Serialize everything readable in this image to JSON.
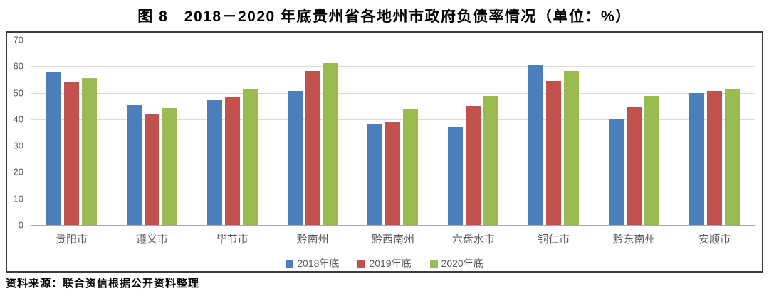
{
  "title": "图 8　2018－2020 年底贵州省各地州市政府负债率情况（单位：%）",
  "source_note": "资料来源：联合资信根据公开资料整理",
  "colors": {
    "series_blue": "#4A7EBC",
    "series_red": "#C2504D",
    "series_green": "#9ABA52",
    "gridline": "#D9D9D9",
    "axis_line": "#A8A8A8",
    "tick_text": "#595959",
    "frame_border": "#3B3B3B"
  },
  "chart_data": {
    "type": "bar",
    "title": "图 8　2018－2020 年底贵州省各地州市政府负债率情况（单位：%）",
    "xlabel": "",
    "ylabel": "",
    "ylim": [
      0,
      70
    ],
    "yticks": [
      0,
      10,
      20,
      30,
      40,
      50,
      60,
      70
    ],
    "grid": true,
    "legend_position": "bottom",
    "categories": [
      "贵阳市",
      "遵义市",
      "毕节市",
      "黔南州",
      "黔西南州",
      "六盘水市",
      "铜仁市",
      "黔东南州",
      "安顺市"
    ],
    "series": [
      {
        "name": "2018年底",
        "color": "#4A7EBC",
        "values": [
          57.8,
          45.4,
          47.3,
          50.7,
          38.0,
          37.0,
          60.3,
          40.1,
          50.0
        ]
      },
      {
        "name": "2019年底",
        "color": "#C2504D",
        "values": [
          54.2,
          41.8,
          48.6,
          58.2,
          39.0,
          45.0,
          54.4,
          44.6,
          50.7
        ]
      },
      {
        "name": "2020年底",
        "color": "#9ABA52",
        "values": [
          55.5,
          44.3,
          51.2,
          61.2,
          44.0,
          48.9,
          58.2,
          48.9,
          51.3
        ]
      }
    ]
  }
}
